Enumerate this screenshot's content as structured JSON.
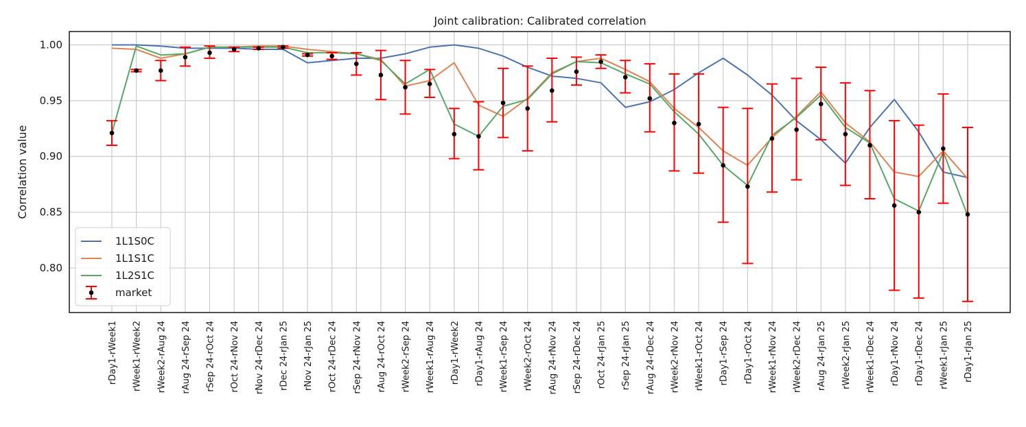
{
  "chart_data": {
    "type": "line",
    "title": "Joint calibration: Calibrated correlation",
    "xlabel": "",
    "ylabel": "Correlation value",
    "ylim": [
      0.76,
      1.012
    ],
    "yticks": [
      0.8,
      0.85,
      0.9,
      0.95,
      1.0
    ],
    "ytick_labels": [
      "0.80",
      "0.85",
      "0.90",
      "0.95",
      "1.00"
    ],
    "grid": true,
    "legend_position": "lower-left",
    "categories": [
      "rDay1-rWeek1",
      "rWeek1-rWeek2",
      "rWeek2-rAug 24",
      "rAug 24-rSep 24",
      "rSep 24-rOct 24",
      "rOct 24-rNov 24",
      "rNov 24-rDec 24",
      "rDec 24-rJan 25",
      "rNov 24-rJan 25",
      "rOct 24-rDec 24",
      "rSep 24-rNov 24",
      "rAug 24-rOct 24",
      "rWeek2-rSep 24",
      "rWeek1-rAug 24",
      "rDay1-rWeek2",
      "rDay1-rAug 24",
      "rWeek1-rSep 24",
      "rWeek2-rOct 24",
      "rAug 24-rNov 24",
      "rSep 24-rDec 24",
      "rOct 24-rJan 25",
      "rSep 24-rJan 25",
      "rAug 24-rDec 24",
      "rWeek2-rNov 24",
      "rWeek1-rOct 24",
      "rDay1-rSep 24",
      "rDay1-rOct 24",
      "rWeek1-rNov 24",
      "rWeek2-rDec 24",
      "rAug 24-rJan 25",
      "rWeek2-rJan 25",
      "rWeek1-rDec 24",
      "rDay1-rNov 24",
      "rDay1-rDec 24",
      "rWeek1-rJan 25",
      "rDay1-rJan 25"
    ],
    "series": [
      {
        "name": "1L1S0C",
        "color": "#4c72b0",
        "values": [
          1.0,
          1.0,
          0.999,
          0.997,
          0.997,
          0.997,
          0.996,
          0.996,
          0.984,
          0.986,
          0.988,
          0.988,
          0.992,
          0.998,
          1.0,
          0.997,
          0.99,
          0.98,
          0.972,
          0.97,
          0.966,
          0.944,
          0.949,
          0.96,
          0.975,
          0.988,
          0.973,
          0.955,
          0.932,
          0.915,
          0.894,
          0.926,
          0.951,
          0.922,
          0.886,
          0.881
        ]
      },
      {
        "name": "1L1S1C",
        "color": "#dd8452",
        "values": [
          0.997,
          0.996,
          0.988,
          0.992,
          0.998,
          0.998,
          0.999,
          0.999,
          0.996,
          0.994,
          0.992,
          0.987,
          0.963,
          0.968,
          0.984,
          0.946,
          0.936,
          0.952,
          0.975,
          0.985,
          0.988,
          0.978,
          0.967,
          0.943,
          0.926,
          0.905,
          0.892,
          0.917,
          0.936,
          0.958,
          0.93,
          0.913,
          0.886,
          0.882,
          0.905,
          0.88
        ]
      },
      {
        "name": "1L2S1C",
        "color": "#55a868",
        "values": [
          0.921,
          0.999,
          0.991,
          0.992,
          0.998,
          0.998,
          0.998,
          0.998,
          0.993,
          0.993,
          0.992,
          0.986,
          0.965,
          0.978,
          0.929,
          0.918,
          0.945,
          0.951,
          0.974,
          0.985,
          0.984,
          0.974,
          0.965,
          0.94,
          0.92,
          0.892,
          0.874,
          0.919,
          0.935,
          0.955,
          0.926,
          0.912,
          0.862,
          0.851,
          0.904,
          0.847
        ]
      }
    ],
    "market": {
      "name": "market",
      "values": [
        0.921,
        0.977,
        0.977,
        0.989,
        0.993,
        0.996,
        0.997,
        0.998,
        0.991,
        0.99,
        0.983,
        0.973,
        0.962,
        0.965,
        0.92,
        0.918,
        0.948,
        0.943,
        0.959,
        0.976,
        0.985,
        0.971,
        0.952,
        0.93,
        0.929,
        0.892,
        0.873,
        0.916,
        0.924,
        0.947,
        0.92,
        0.91,
        0.856,
        0.85,
        0.907,
        0.848
      ],
      "lower": [
        0.91,
        0.976,
        0.968,
        0.981,
        0.988,
        0.994,
        0.996,
        0.997,
        0.99,
        0.987,
        0.973,
        0.951,
        0.938,
        0.953,
        0.898,
        0.888,
        0.917,
        0.905,
        0.931,
        0.964,
        0.979,
        0.957,
        0.922,
        0.887,
        0.885,
        0.841,
        0.804,
        0.868,
        0.879,
        0.915,
        0.874,
        0.862,
        0.78,
        0.773,
        0.858,
        0.77
      ],
      "upper": [
        0.932,
        0.978,
        0.986,
        0.998,
        0.999,
        0.998,
        0.998,
        0.999,
        0.992,
        0.993,
        0.993,
        0.995,
        0.986,
        0.978,
        0.943,
        0.949,
        0.979,
        0.981,
        0.988,
        0.989,
        0.991,
        0.986,
        0.983,
        0.974,
        0.974,
        0.944,
        0.943,
        0.965,
        0.97,
        0.98,
        0.966,
        0.959,
        0.932,
        0.928,
        0.956,
        0.926
      ]
    },
    "errorbar_color": "#ff0000",
    "marker_color": "#000000"
  }
}
